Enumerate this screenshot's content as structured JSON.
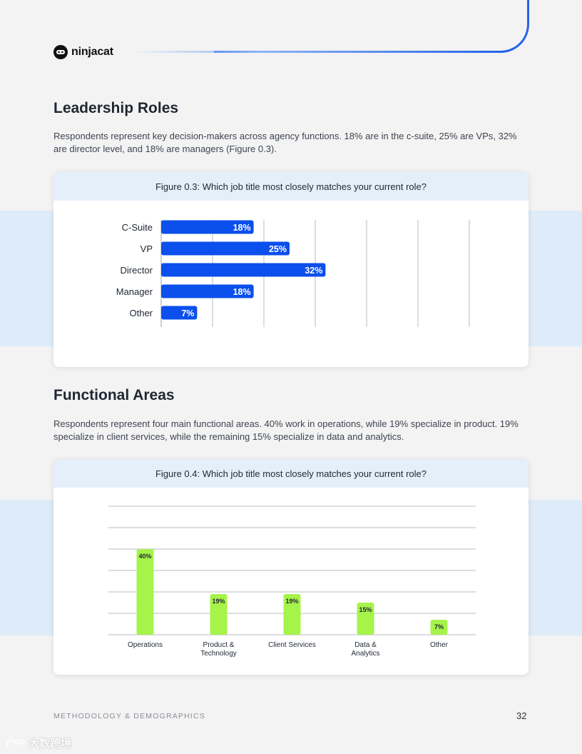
{
  "brand": {
    "name": "ninjacat"
  },
  "sections": {
    "leadership": {
      "title": "Leadership Roles",
      "paragraph": "Respondents represent key decision-makers across agency functions. 18% are in the c-suite, 25% are VPs, 32% are director level, and 18% are managers (Figure 0.3)."
    },
    "functional": {
      "title": "Functional Areas",
      "paragraph": "Respondents represent four main functional areas. 40% work in operations, while 19% specialize in product. 19% specialize in client services, while the remaining 15% specialize in data and analytics."
    }
  },
  "chart_data": [
    {
      "type": "bar",
      "orientation": "horizontal",
      "title": "Figure 0.3: Which job title most closely matches your current role?",
      "categories": [
        "C-Suite",
        "VP",
        "Director",
        "Manager",
        "Other"
      ],
      "values": [
        18,
        25,
        32,
        18,
        7
      ],
      "labels": [
        "18%",
        "25%",
        "32%",
        "18%",
        "7%"
      ],
      "unit": "%",
      "xlim": [
        0,
        60
      ],
      "grid": true,
      "bar_color": "#0b4fec"
    },
    {
      "type": "bar",
      "orientation": "vertical",
      "title": "Figure 0.4: Which job title most closely matches your current role?",
      "categories": [
        "Operations",
        "Product & Technology",
        "Client Services",
        "Data & Analytics",
        "Other"
      ],
      "values": [
        40,
        19,
        19,
        15,
        7
      ],
      "labels": [
        "40%",
        "19%",
        "19%",
        "15%",
        "7%"
      ],
      "unit": "%",
      "ylim": [
        0,
        60
      ],
      "grid": true,
      "bar_color": "#a6f34a"
    }
  ],
  "footer": {
    "section": "METHODOLOGY & DEMOGRAPHICS",
    "page": "32"
  },
  "watermark": "大数跨境"
}
